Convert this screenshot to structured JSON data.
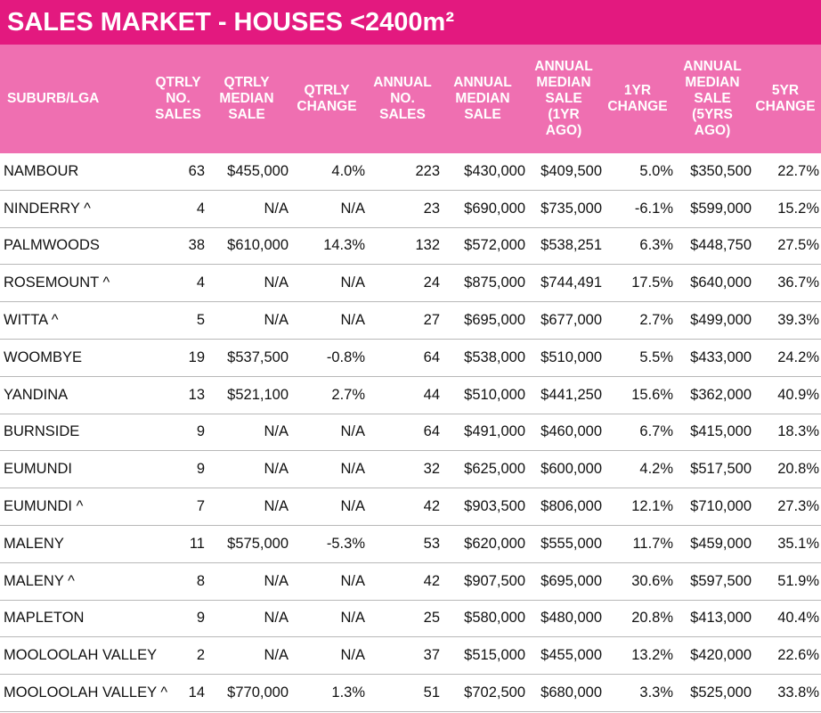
{
  "header": {
    "title": "SALES MARKET - HOUSES <2400m²"
  },
  "table": {
    "columns": [
      "SUBURB/LGA",
      "QTRLY\nNO.\nSALES",
      "QTRLY\nMEDIAN\nSALE",
      "QTRLY\nCHANGE",
      "ANNUAL\nNO.\nSALES",
      "ANNUAL\nMEDIAN\nSALE",
      "ANNUAL\nMEDIAN\nSALE\n(1YR\nAGO)",
      "1YR\nCHANGE",
      "ANNUAL\nMEDIAN\nSALE\n(5YRS\nAGO)",
      "5YR\nCHANGE"
    ],
    "rows": [
      [
        "NAMBOUR",
        "63",
        "$455,000",
        "4.0%",
        "223",
        "$430,000",
        "$409,500",
        "5.0%",
        "$350,500",
        "22.7%"
      ],
      [
        "NINDERRY ^",
        "4",
        "N/A",
        "N/A",
        "23",
        "$690,000",
        "$735,000",
        "-6.1%",
        "$599,000",
        "15.2%"
      ],
      [
        "PALMWOODS",
        "38",
        "$610,000",
        "14.3%",
        "132",
        "$572,000",
        "$538,251",
        "6.3%",
        "$448,750",
        "27.5%"
      ],
      [
        "ROSEMOUNT ^",
        "4",
        "N/A",
        "N/A",
        "24",
        "$875,000",
        "$744,491",
        "17.5%",
        "$640,000",
        "36.7%"
      ],
      [
        "WITTA ^",
        "5",
        "N/A",
        "N/A",
        "27",
        "$695,000",
        "$677,000",
        "2.7%",
        "$499,000",
        "39.3%"
      ],
      [
        "WOOMBYE",
        "19",
        "$537,500",
        "-0.8%",
        "64",
        "$538,000",
        "$510,000",
        "5.5%",
        "$433,000",
        "24.2%"
      ],
      [
        "YANDINA",
        "13",
        "$521,100",
        "2.7%",
        "44",
        "$510,000",
        "$441,250",
        "15.6%",
        "$362,000",
        "40.9%"
      ],
      [
        "BURNSIDE",
        "9",
        "N/A",
        "N/A",
        "64",
        "$491,000",
        "$460,000",
        "6.7%",
        "$415,000",
        "18.3%"
      ],
      [
        "EUMUNDI",
        "9",
        "N/A",
        "N/A",
        "32",
        "$625,000",
        "$600,000",
        "4.2%",
        "$517,500",
        "20.8%"
      ],
      [
        "EUMUNDI ^",
        "7",
        "N/A",
        "N/A",
        "42",
        "$903,500",
        "$806,000",
        "12.1%",
        "$710,000",
        "27.3%"
      ],
      [
        "MALENY",
        "11",
        "$575,000",
        "-5.3%",
        "53",
        "$620,000",
        "$555,000",
        "11.7%",
        "$459,000",
        "35.1%"
      ],
      [
        "MALENY ^",
        "8",
        "N/A",
        "N/A",
        "42",
        "$907,500",
        "$695,000",
        "30.6%",
        "$597,500",
        "51.9%"
      ],
      [
        "MAPLETON",
        "9",
        "N/A",
        "N/A",
        "25",
        "$580,000",
        "$480,000",
        "20.8%",
        "$413,000",
        "40.4%"
      ],
      [
        "MOOLOOLAH VALLEY",
        "2",
        "N/A",
        "N/A",
        "37",
        "$515,000",
        "$455,000",
        "13.2%",
        "$420,000",
        "22.6%"
      ],
      [
        "MOOLOOLAH VALLEY ^",
        "14",
        "$770,000",
        "1.3%",
        "51",
        "$702,500",
        "$680,000",
        "3.3%",
        "$525,000",
        "33.8%"
      ]
    ]
  }
}
